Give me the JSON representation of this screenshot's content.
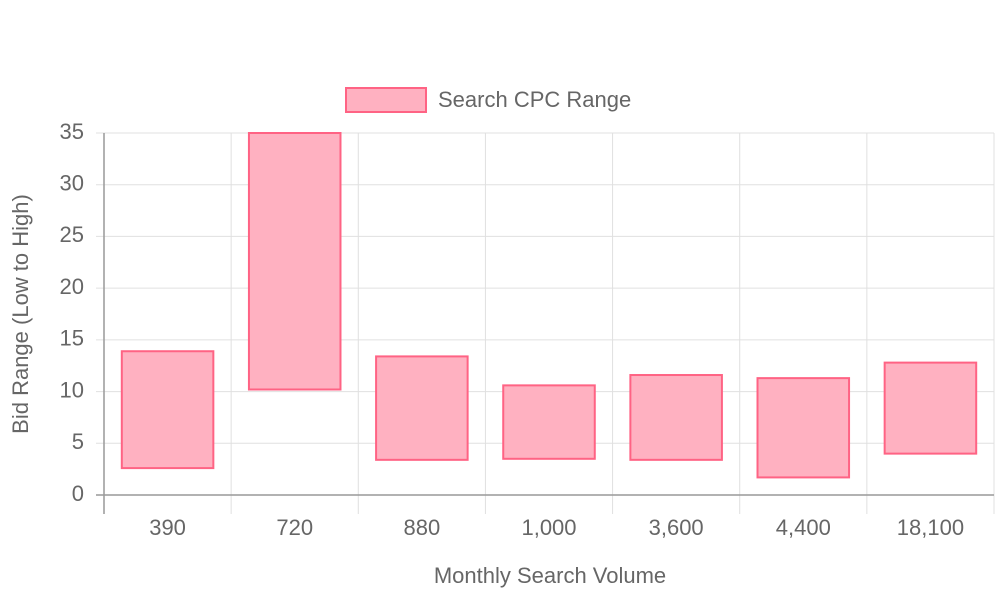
{
  "chart_data": {
    "type": "floating-bar",
    "x_label": "Monthly Search Volume",
    "y_label": "Bid Range (Low to High)",
    "categories": [
      "390",
      "720",
      "880",
      "1,000",
      "3,600",
      "4,400",
      "18,100"
    ],
    "series": [
      {
        "name": "Search CPC Range",
        "color": "#ff6384",
        "fill": "#ffb1c1",
        "values": [
          [
            2.6,
            13.9
          ],
          [
            10.2,
            35
          ],
          [
            3.4,
            13.4
          ],
          [
            3.5,
            10.6
          ],
          [
            3.4,
            11.6
          ],
          [
            1.7,
            11.3
          ],
          [
            4.0,
            12.8
          ]
        ]
      }
    ],
    "ylim": [
      0,
      35
    ],
    "yticks": [
      0,
      5,
      10,
      15,
      20,
      25,
      30,
      35
    ],
    "grid": true,
    "legend": "top"
  }
}
